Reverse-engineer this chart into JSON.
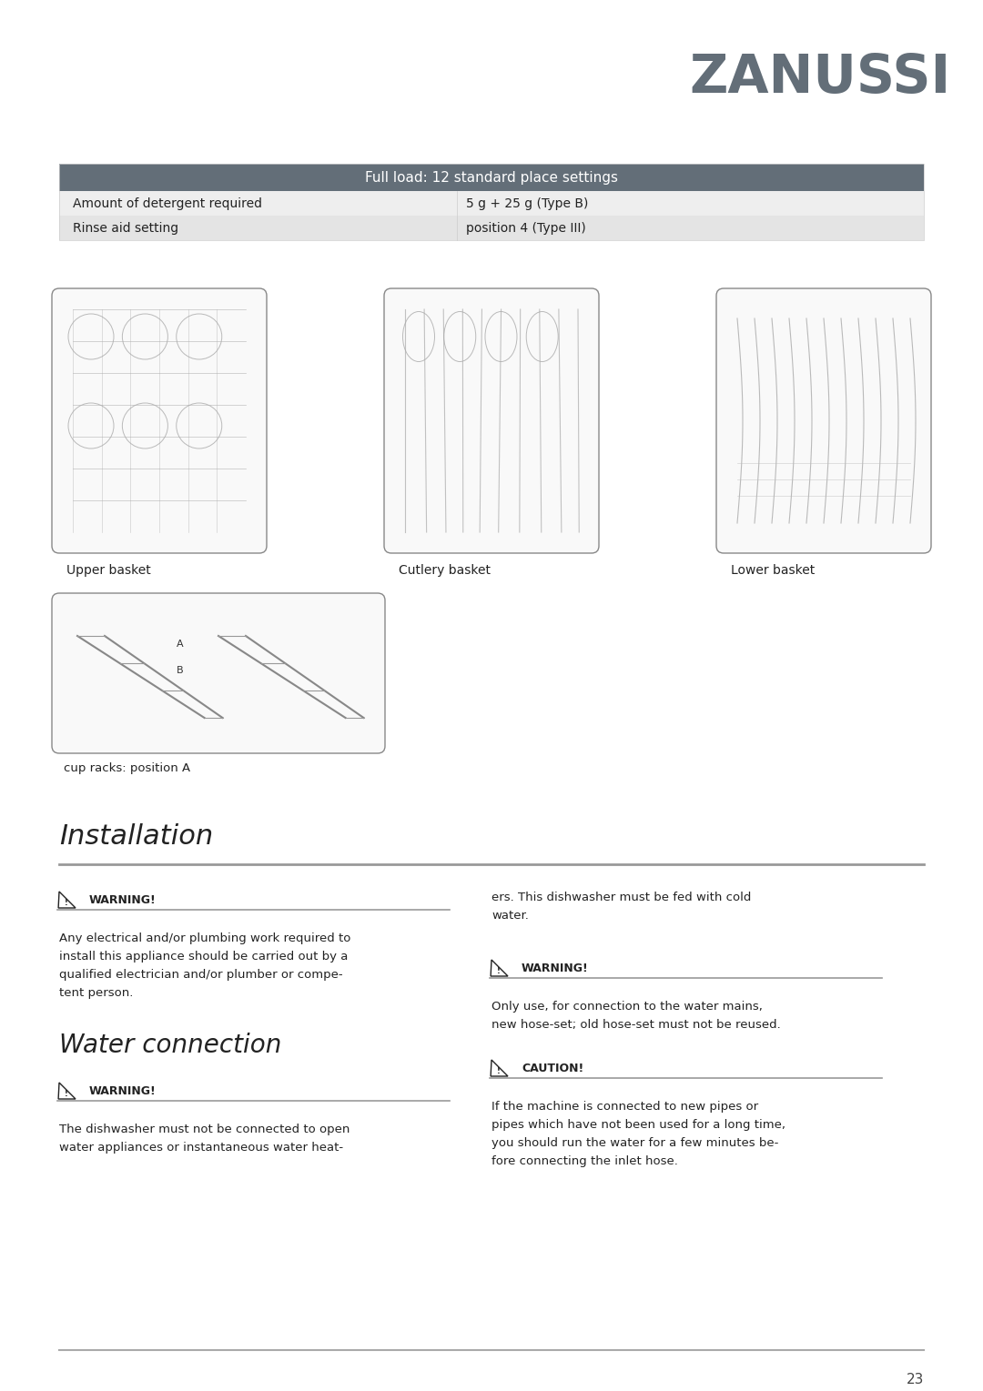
{
  "page_bg": "#ffffff",
  "brand": "ZANUSSI",
  "brand_color": "#636e78",
  "brand_fontsize": 42,
  "table_header_text": "Full load: 12 standard place settings",
  "table_header_bg": "#636e78",
  "table_header_text_color": "#ffffff",
  "table_row1_label": "Amount of detergent required",
  "table_row1_value": "5 g + 25 g (Type B)",
  "table_row1_bg": "#eeeeee",
  "table_row2_label": "Rinse aid setting",
  "table_row2_value": "position 4 (Type III)",
  "table_row2_bg": "#e4e4e4",
  "basket_labels": [
    "Upper basket",
    "Cutlery basket",
    "Lower basket"
  ],
  "cup_rack_label": "cup racks: position A",
  "section_installation_title": "Installation",
  "section_water_title": "Water connection",
  "installation_warning_text": "Any electrical and/or plumbing work required to\ninstall this appliance should be carried out by a\nqualified electrician and/or plumber or compe-\ntent person.",
  "water_warning_text_col1": "The dishwasher must not be connected to open\nwater appliances or instantaneous water heat-",
  "col2_text1": "ers. This dishwasher must be fed with cold\nwater.",
  "col2_warning2_text": "Only use, for connection to the water mains,\nnew hose-set; old hose-set must not be reused.",
  "col2_caution_text": "If the machine is connected to new pipes or\npipes which have not been used for a long time,\nyou should run the water for a few minutes be-\nfore connecting the inlet hose.",
  "page_number": "23",
  "line_color": "#aaaaaa",
  "text_color": "#222222",
  "warning_ul_color": "#999999"
}
